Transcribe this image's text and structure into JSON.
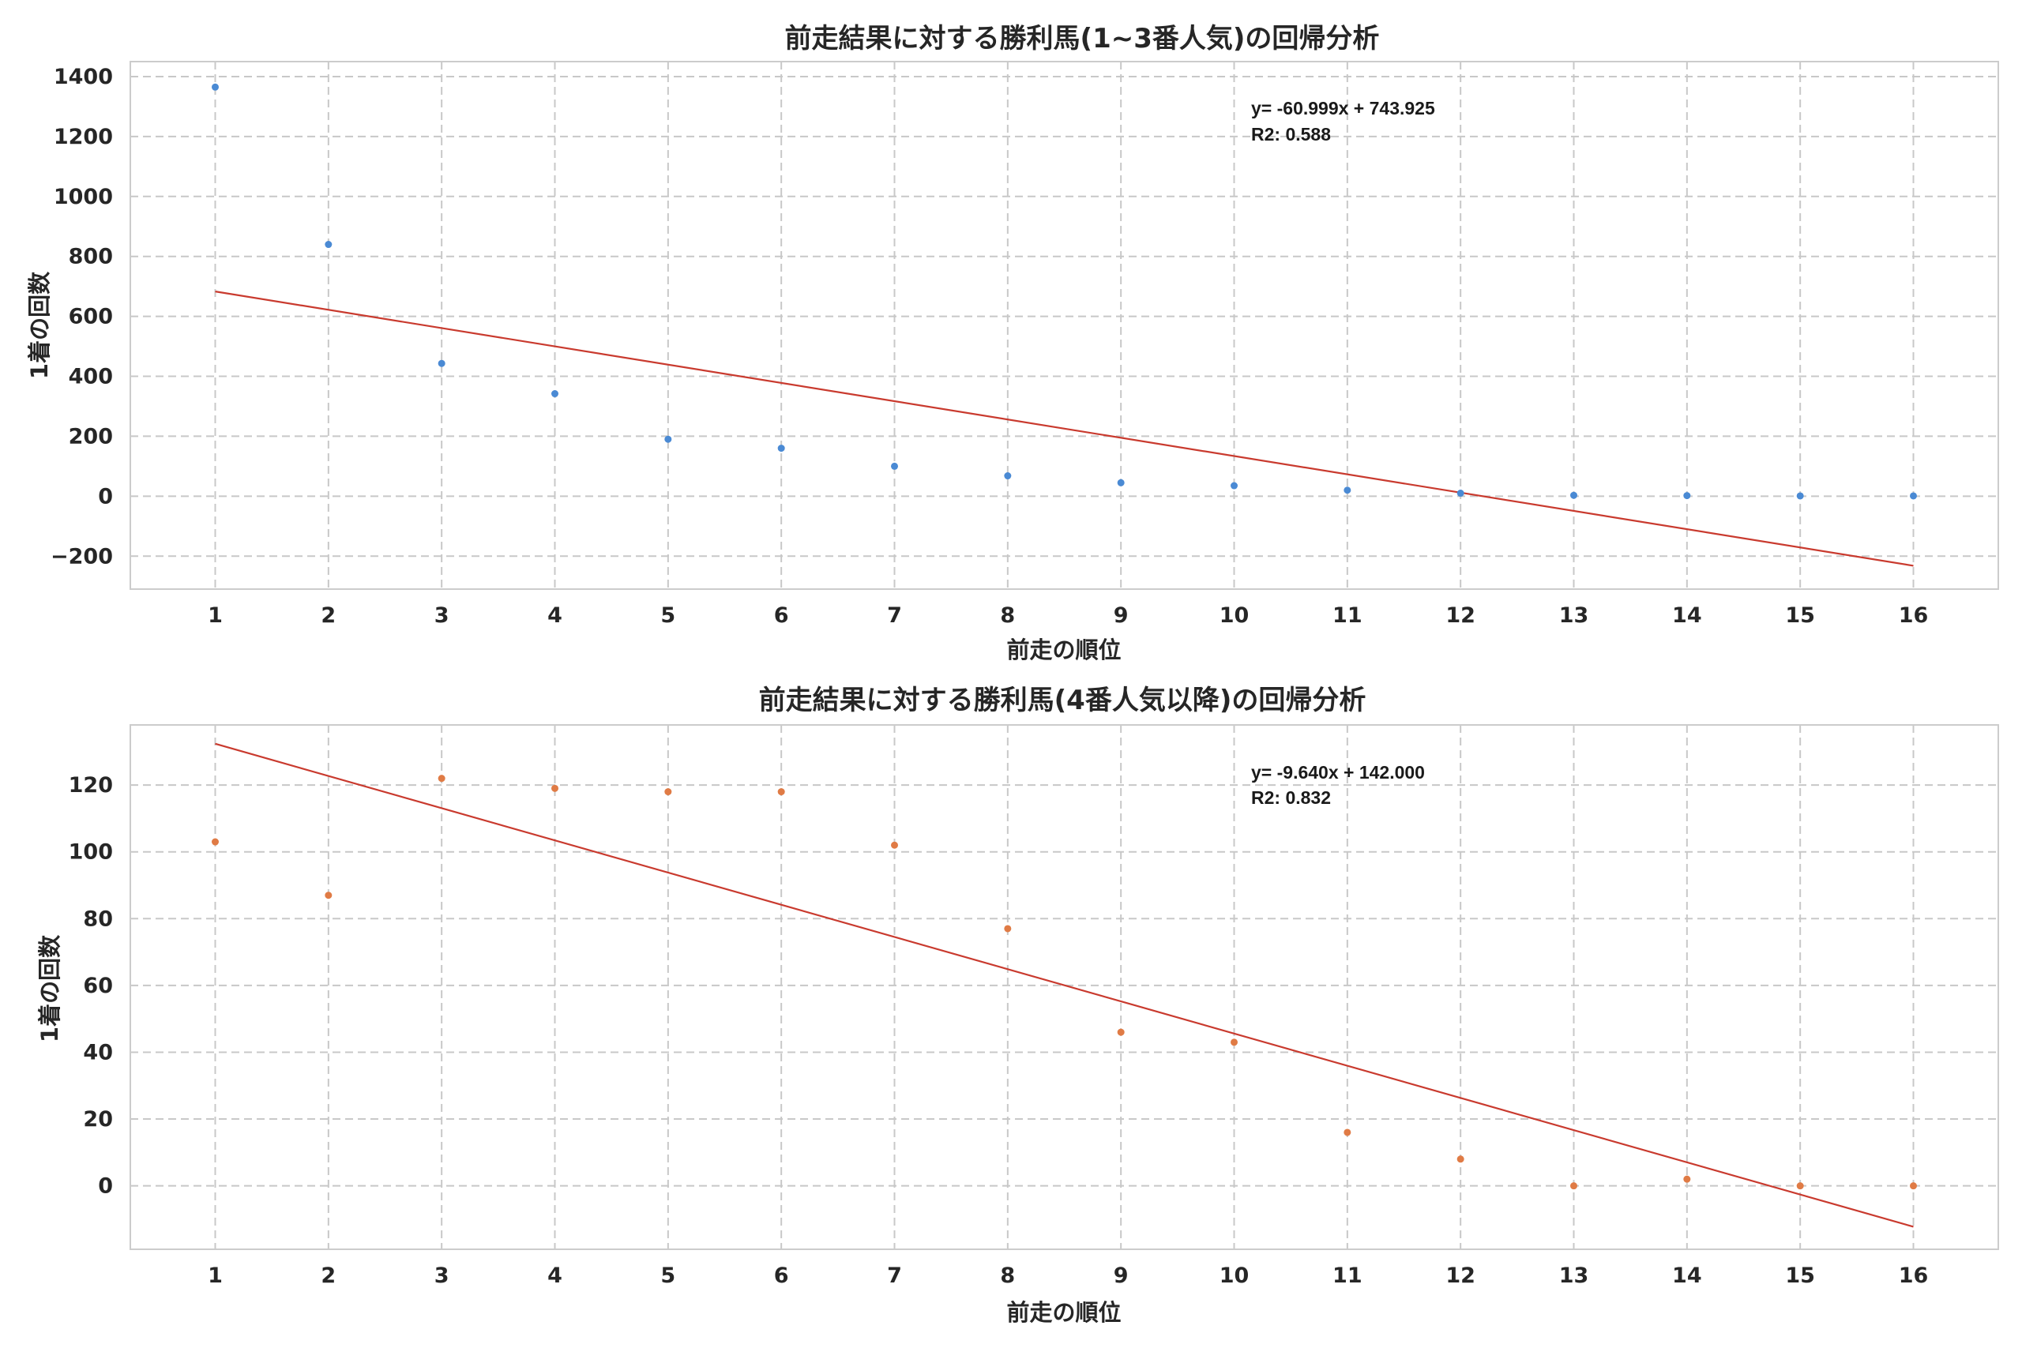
{
  "chart_data": [
    {
      "type": "scatter",
      "title": "前走結果に対する勝利馬(1~3番人気)の回帰分析",
      "xlabel": "前走の順位",
      "ylabel": "1着の回数",
      "x": [
        1,
        2,
        3,
        4,
        5,
        6,
        7,
        8,
        9,
        10,
        11,
        12,
        13,
        14,
        15,
        16
      ],
      "y": [
        1365,
        840,
        443,
        342,
        190,
        160,
        100,
        68,
        45,
        35,
        20,
        10,
        3,
        2,
        1,
        1
      ],
      "xlim": [
        0.25,
        16.75
      ],
      "ylim": [
        -310,
        1450
      ],
      "xticks": [
        1,
        2,
        3,
        4,
        5,
        6,
        7,
        8,
        9,
        10,
        11,
        12,
        13,
        14,
        15,
        16
      ],
      "yticks": [
        -200,
        0,
        200,
        400,
        600,
        800,
        1000,
        1200,
        1400
      ],
      "ytick_labels": [
        "−200",
        "0",
        "200",
        "400",
        "600",
        "800",
        "1000",
        "1200",
        "1400"
      ],
      "point_color": "#4a8ad4",
      "regression": {
        "slope": -60.999,
        "intercept": 743.925,
        "color": "#c93a2e"
      },
      "annotation": [
        "y= -60.999x + 743.925",
        "R2: 0.588"
      ],
      "grid": true
    },
    {
      "type": "scatter",
      "title": "前走結果に対する勝利馬(4番人気以降)の回帰分析",
      "xlabel": "前走の順位",
      "ylabel": "1着の回数",
      "x": [
        1,
        2,
        3,
        4,
        5,
        6,
        7,
        8,
        9,
        10,
        11,
        12,
        13,
        14,
        15,
        16
      ],
      "y": [
        103,
        87,
        122,
        119,
        118,
        118,
        102,
        77,
        46,
        43,
        16,
        8,
        0,
        2,
        0,
        0
      ],
      "xlim": [
        0.25,
        16.75
      ],
      "ylim": [
        -19,
        138
      ],
      "xticks": [
        1,
        2,
        3,
        4,
        5,
        6,
        7,
        8,
        9,
        10,
        11,
        12,
        13,
        14,
        15,
        16
      ],
      "yticks": [
        0,
        20,
        40,
        60,
        80,
        100,
        120
      ],
      "ytick_labels": [
        "0",
        "20",
        "40",
        "60",
        "80",
        "100",
        "120"
      ],
      "point_color": "#e07b45",
      "regression": {
        "slope": -9.64,
        "intercept": 142.0,
        "color": "#c93a2e"
      },
      "annotation": [
        "y= -9.640x + 142.000",
        "R2: 0.832"
      ],
      "grid": true
    }
  ]
}
